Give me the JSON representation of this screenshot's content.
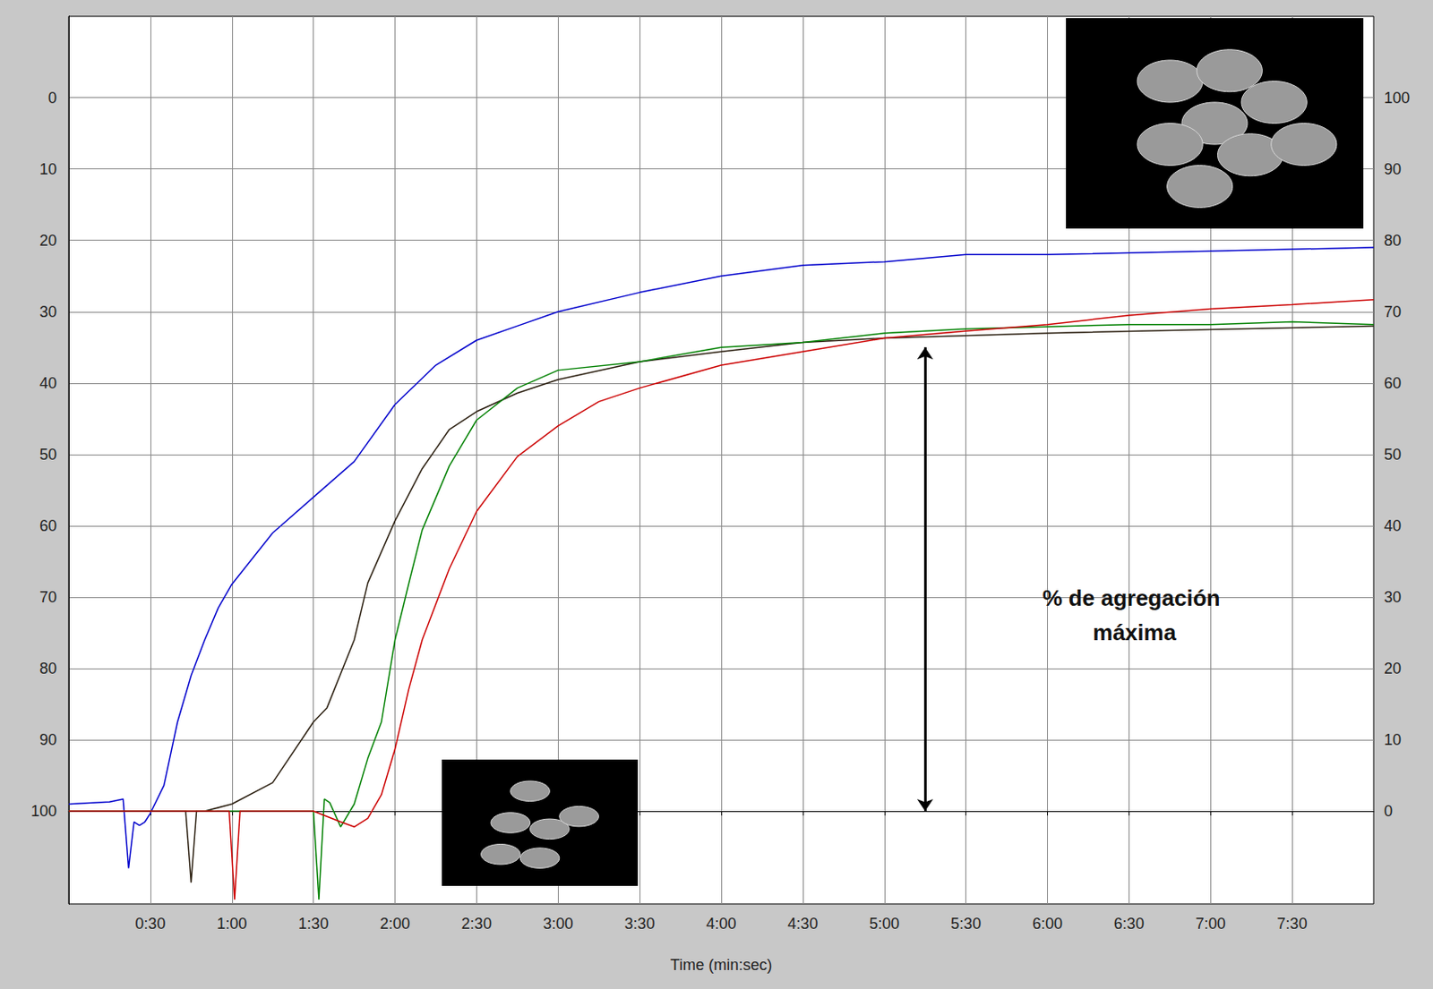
{
  "chart_data": {
    "type": "line",
    "x_label": "Time (min:sec)",
    "xlim": [
      0,
      480
    ],
    "xticks": [
      {
        "value": 30,
        "label": "0:30"
      },
      {
        "value": 60,
        "label": "1:00"
      },
      {
        "value": 90,
        "label": "1:30"
      },
      {
        "value": 120,
        "label": "2:00"
      },
      {
        "value": 150,
        "label": "2:30"
      },
      {
        "value": 180,
        "label": "3:00"
      },
      {
        "value": 210,
        "label": "3:30"
      },
      {
        "value": 240,
        "label": "4:00"
      },
      {
        "value": 270,
        "label": "4:30"
      },
      {
        "value": 300,
        "label": "5:00"
      },
      {
        "value": 330,
        "label": "5:30"
      },
      {
        "value": 360,
        "label": "6:00"
      },
      {
        "value": 390,
        "label": "6:30"
      },
      {
        "value": 420,
        "label": "7:00"
      },
      {
        "value": 450,
        "label": "7:30"
      }
    ],
    "ylim": [
      -13,
      111.4
    ],
    "yticks": [
      0,
      10,
      20,
      30,
      40,
      50,
      60,
      70,
      80,
      90,
      100
    ],
    "y2lim": [
      113,
      -11.4
    ],
    "y2ticks": [
      0,
      10,
      20,
      30,
      40,
      50,
      60,
      70,
      80,
      90,
      100
    ],
    "grid": true,
    "series": [
      {
        "color": "#0000cc",
        "x": [
          0,
          15,
          20,
          22,
          24,
          26,
          28,
          30,
          35,
          40,
          45,
          50,
          55,
          60,
          75,
          90,
          105,
          120,
          135,
          150,
          165,
          180,
          210,
          240,
          270,
          300,
          330,
          360,
          420,
          480
        ],
        "values": [
          1,
          1.3,
          1.7,
          -8,
          -1.5,
          -2,
          -1.5,
          -0.3,
          3.6,
          12.5,
          19,
          24,
          28.5,
          31.8,
          39,
          44,
          49,
          57,
          62.5,
          66,
          68,
          70,
          72.7,
          75,
          76.5,
          77,
          78,
          78,
          78.5,
          79
        ]
      },
      {
        "color": "#2b1f10",
        "x": [
          0,
          43,
          45,
          47,
          50,
          60,
          75,
          90,
          95,
          105,
          110,
          120,
          130,
          140,
          150,
          165,
          180,
          210,
          240,
          270,
          300,
          360,
          420,
          480
        ],
        "values": [
          0,
          0,
          -10,
          0,
          0,
          1,
          4,
          12.5,
          14.5,
          24,
          32,
          40.7,
          48,
          53.5,
          56,
          58.6,
          60.5,
          63,
          64.4,
          65.7,
          66.3,
          67,
          67.5,
          68
        ]
      },
      {
        "color": "#008000",
        "x": [
          0,
          90,
          92,
          94,
          96,
          100,
          105,
          110,
          115,
          120,
          125,
          130,
          140,
          150,
          165,
          180,
          210,
          240,
          270,
          300,
          330,
          360,
          390,
          420,
          450,
          480
        ],
        "values": [
          0,
          0,
          -12.4,
          1.7,
          1.2,
          -2.2,
          1,
          7.4,
          12.5,
          24,
          31.8,
          39.4,
          48.4,
          54.8,
          59.3,
          61.8,
          63,
          65,
          65.7,
          67,
          67.6,
          67.9,
          68.2,
          68.2,
          68.6,
          68.2
        ]
      },
      {
        "color": "#cc0000",
        "x": [
          0,
          59,
          61,
          63,
          90,
          100,
          105,
          110,
          115,
          120,
          125,
          130,
          140,
          150,
          165,
          180,
          195,
          210,
          240,
          270,
          300,
          330,
          360,
          390,
          420,
          450,
          480
        ],
        "values": [
          0,
          0,
          -12.4,
          0,
          0,
          -1.5,
          -2.2,
          -1,
          2.3,
          8.7,
          17,
          24,
          34,
          42,
          49.7,
          54,
          57.4,
          59.3,
          62.5,
          64.4,
          66.3,
          67.3,
          68.2,
          69.5,
          70.4,
          71,
          71.7
        ]
      }
    ],
    "annotations": [
      {
        "text": "% de agregación máxima",
        "x": 392,
        "y": 27.5
      }
    ],
    "arrows": [
      {
        "x": 315,
        "from": 0,
        "to": 65
      }
    ]
  }
}
